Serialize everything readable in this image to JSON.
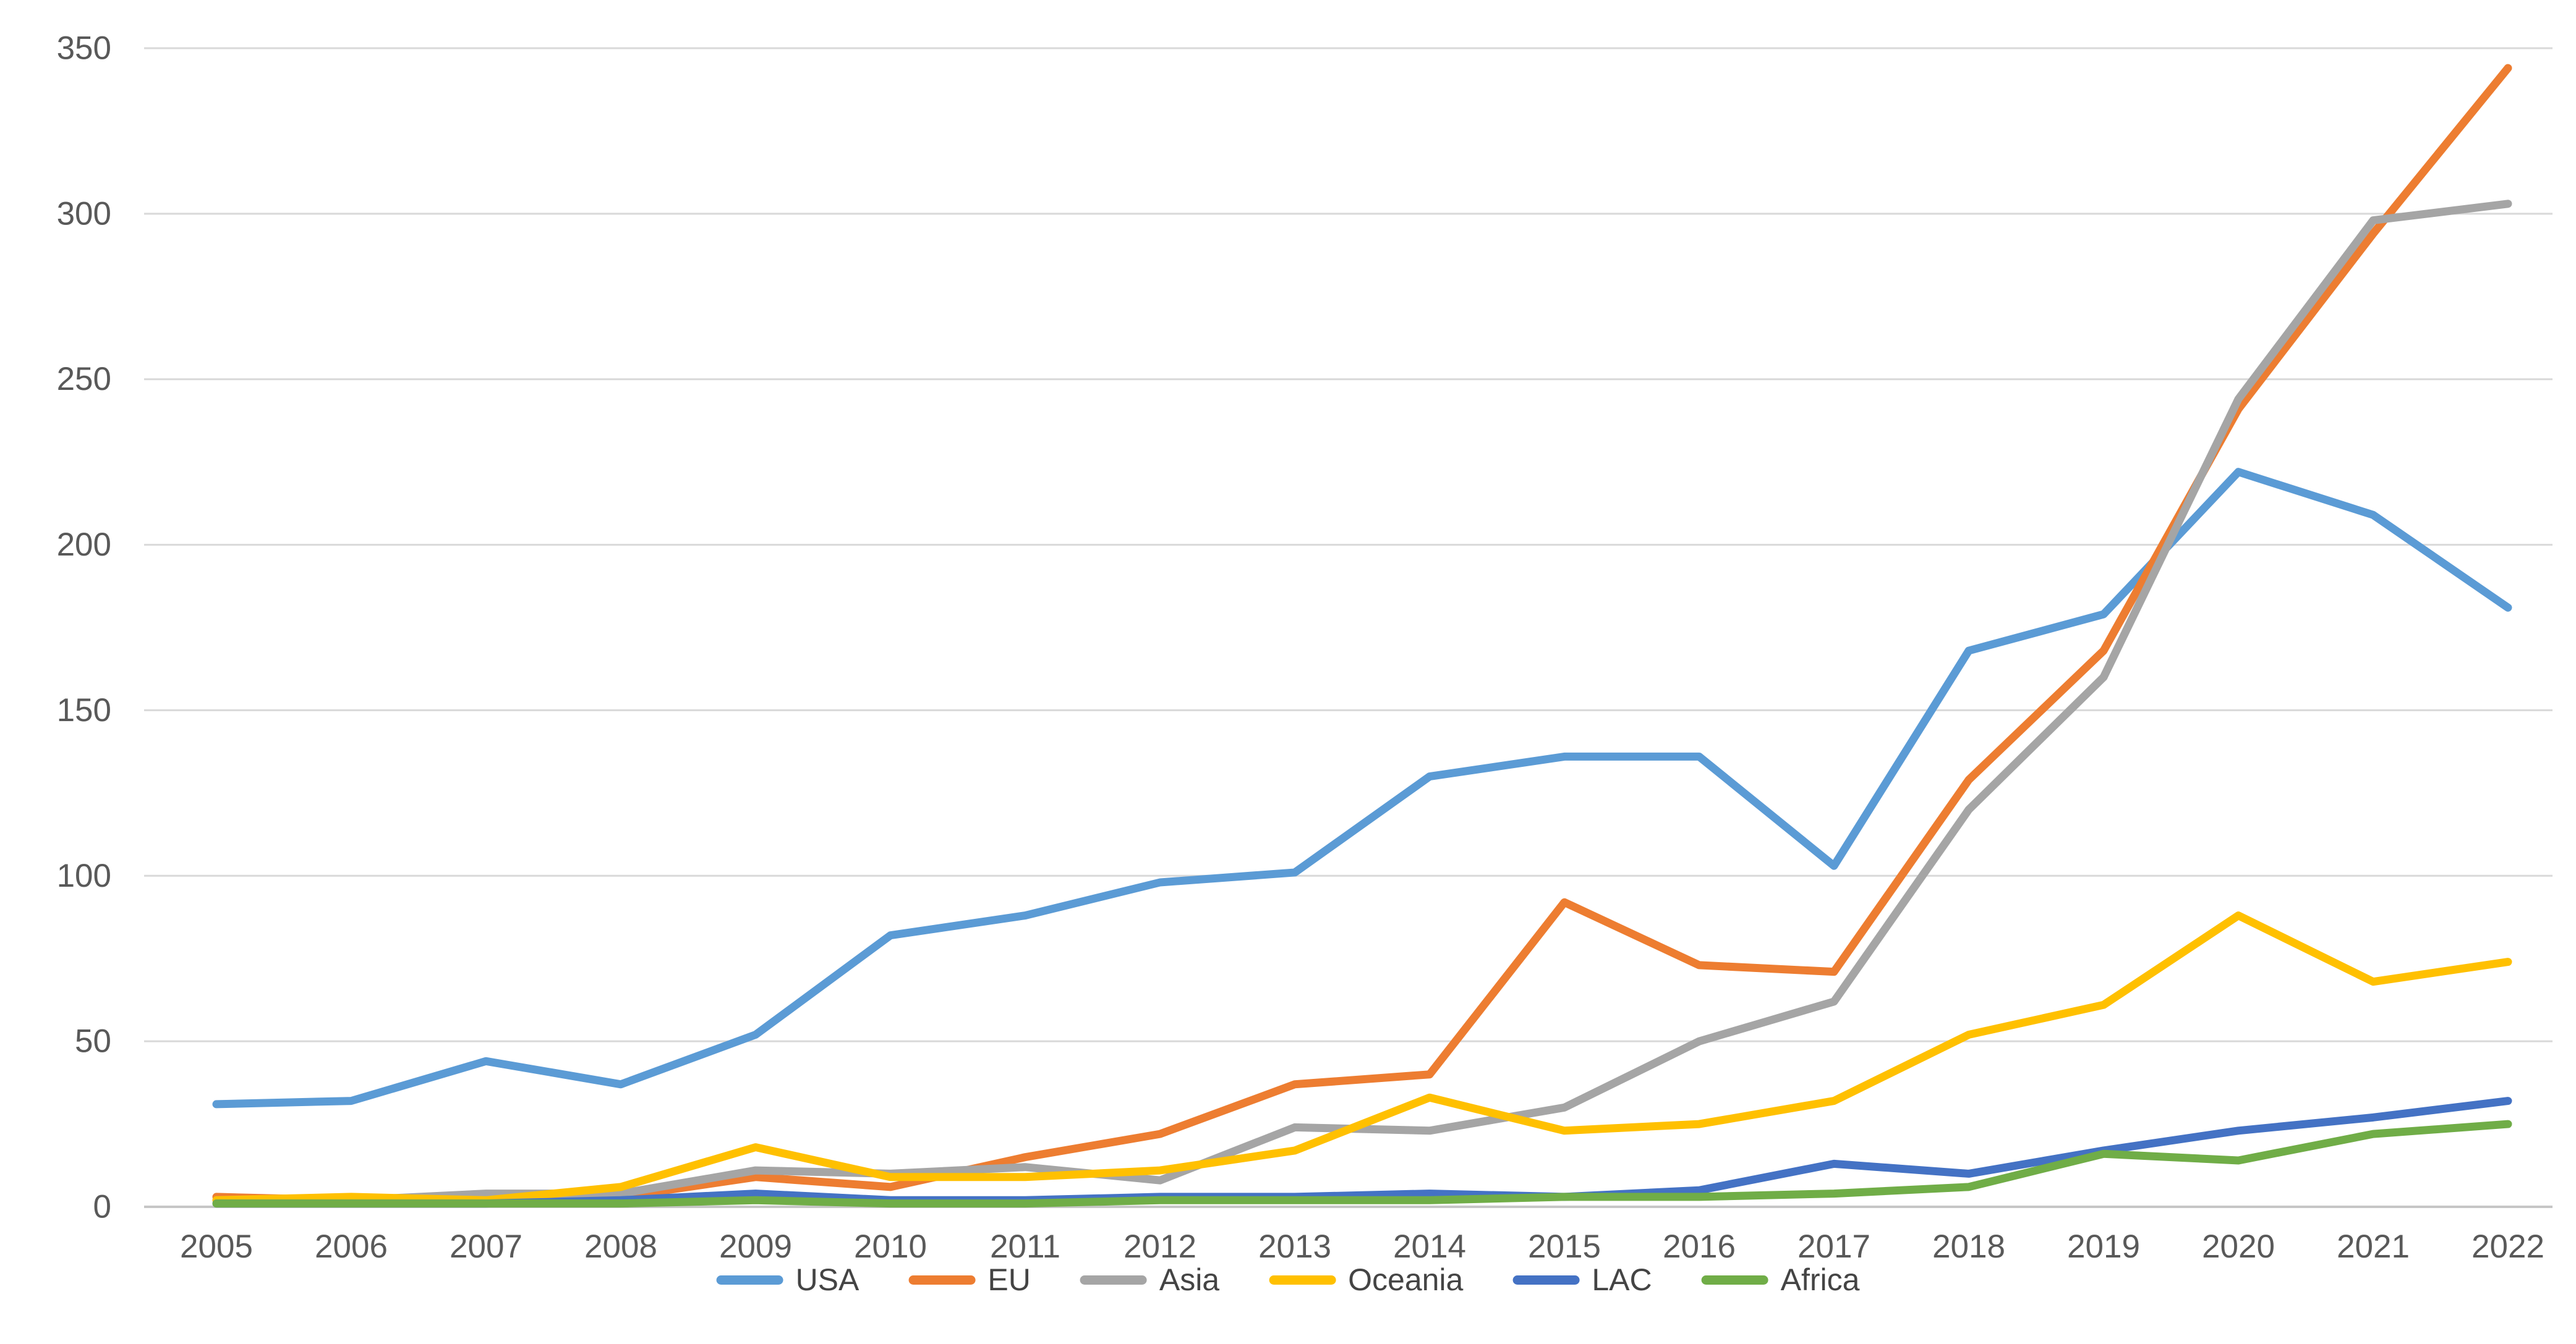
{
  "chart_data": {
    "type": "line",
    "title": "",
    "xlabel": "",
    "ylabel": "",
    "x": [
      2005,
      2006,
      2007,
      2008,
      2009,
      2010,
      2011,
      2012,
      2013,
      2014,
      2015,
      2016,
      2017,
      2018,
      2019,
      2020,
      2021,
      2022
    ],
    "series": [
      {
        "name": "USA",
        "color": "#5B9BD5",
        "values": [
          31,
          32,
          44,
          37,
          52,
          82,
          88,
          98,
          101,
          130,
          136,
          136,
          103,
          168,
          179,
          222,
          209,
          181
        ]
      },
      {
        "name": "EU",
        "color": "#ED7D31",
        "values": [
          3,
          2,
          2,
          3,
          9,
          6,
          15,
          22,
          37,
          40,
          92,
          73,
          71,
          129,
          168,
          241,
          294,
          344
        ]
      },
      {
        "name": "Asia",
        "color": "#A5A5A5",
        "values": [
          2,
          2,
          4,
          4,
          11,
          10,
          12,
          8,
          24,
          23,
          30,
          50,
          62,
          120,
          160,
          244,
          298,
          303
        ]
      },
      {
        "name": "Oceania",
        "color": "#FFC000",
        "values": [
          2,
          3,
          2,
          6,
          18,
          9,
          9,
          11,
          17,
          33,
          23,
          25,
          32,
          52,
          61,
          88,
          68,
          74
        ]
      },
      {
        "name": "LAC",
        "color": "#4472C4",
        "values": [
          1,
          1,
          1,
          2,
          4,
          2,
          2,
          3,
          3,
          4,
          3,
          5,
          13,
          10,
          17,
          23,
          27,
          32
        ]
      },
      {
        "name": "Africa",
        "color": "#70AD47",
        "values": [
          1,
          1,
          1,
          1,
          2,
          1,
          1,
          2,
          2,
          2,
          3,
          3,
          4,
          6,
          16,
          14,
          22,
          25
        ]
      }
    ],
    "ylim": [
      0,
      350
    ],
    "ytick_step": 50,
    "y_tick_labels": [
      "0",
      "50",
      "100",
      "150",
      "200",
      "250",
      "300",
      "350"
    ],
    "x_tick_labels": [
      "2005",
      "2006",
      "2007",
      "2008",
      "2009",
      "2010",
      "2011",
      "2012",
      "2013",
      "2014",
      "2015",
      "2016",
      "2017",
      "2018",
      "2019",
      "2020",
      "2021",
      "2022"
    ],
    "grid": true,
    "legend_position": "bottom",
    "legend_labels": [
      "USA",
      "EU",
      "Asia",
      "Oceania",
      "LAC",
      "Africa"
    ]
  },
  "style_tokens": {
    "background": "#FFFFFF",
    "gridline_color": "#D9D9D9",
    "axis_line_color": "#C6C6C6",
    "tick_text_color": "#595959",
    "legend_text_color": "#444444"
  }
}
